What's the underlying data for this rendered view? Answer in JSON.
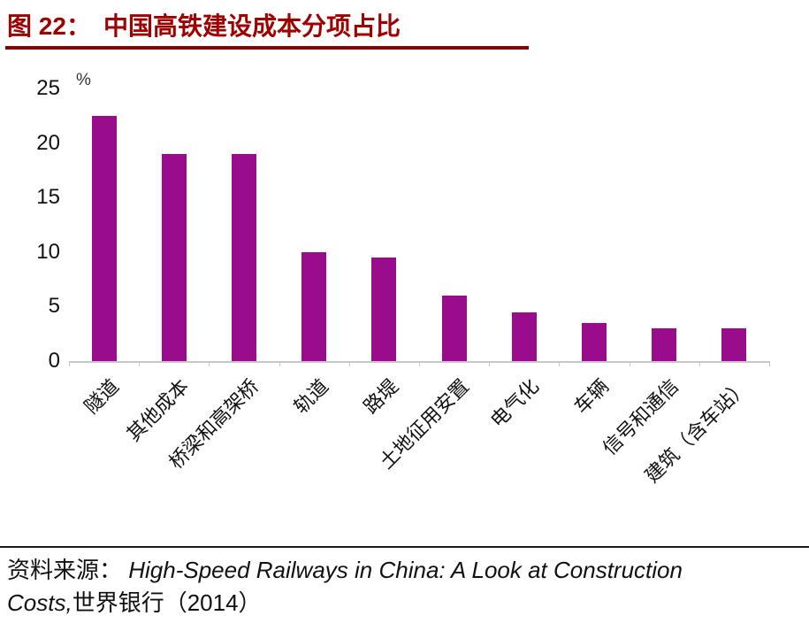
{
  "header": {
    "figure_label": "图 22：",
    "title": "中国高铁建设成本分项占比",
    "title_color": "#A00000",
    "rule_color": "#7E0505"
  },
  "chart_data": {
    "type": "bar",
    "title": "中国高铁建设成本分项占比",
    "categories": [
      "隧道",
      "其他成本",
      "桥梁和高架桥",
      "轨道",
      "路堤",
      "土地征用安置",
      "电气化",
      "车辆",
      "信号和通信",
      "建筑（含车站）"
    ],
    "values": [
      22.5,
      19,
      19,
      10,
      9.5,
      6,
      4.5,
      3.5,
      3,
      3
    ],
    "unit_label": "%",
    "xlabel": "",
    "ylabel": "%",
    "ylim": [
      0,
      25
    ],
    "yticks": [
      0,
      5,
      10,
      15,
      20,
      25
    ],
    "grid": false,
    "legend_position": "none",
    "bar_color": "#990C8B"
  },
  "footer": {
    "source_prefix": "资料来源： ",
    "source_english": "High-Speed Railways in China: A Look at Construction Costs,",
    "source_suffix": "世界银行（2014）"
  }
}
